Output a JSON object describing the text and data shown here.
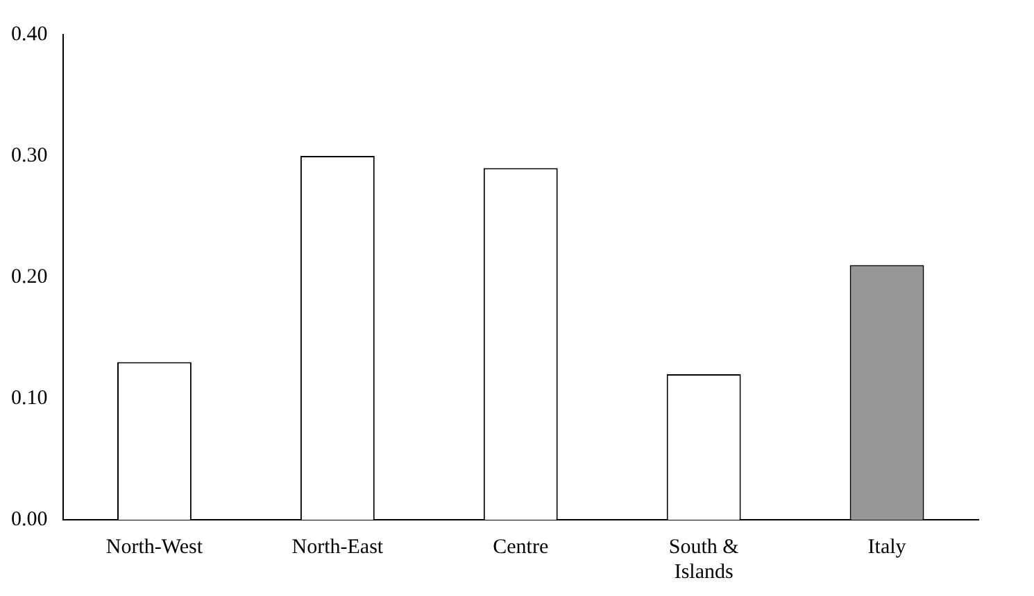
{
  "chart_data": {
    "type": "bar",
    "categories": [
      "North-West",
      "North-East",
      "Centre",
      "South & Islands",
      "Italy"
    ],
    "values": [
      0.13,
      0.3,
      0.29,
      0.12,
      0.21
    ],
    "colors": [
      "#ffffff",
      "#ffffff",
      "#ffffff",
      "#ffffff",
      "#969696"
    ],
    "ylim": [
      0,
      0.4
    ],
    "yticks": [
      {
        "value": 0,
        "label": "0.00"
      },
      {
        "value": 0.1,
        "label": "0.10"
      },
      {
        "value": 0.2,
        "label": "0.20"
      },
      {
        "value": 0.3,
        "label": "0.30"
      },
      {
        "value": 0.4,
        "label": "0.40"
      }
    ],
    "grid": false,
    "legend": false
  }
}
